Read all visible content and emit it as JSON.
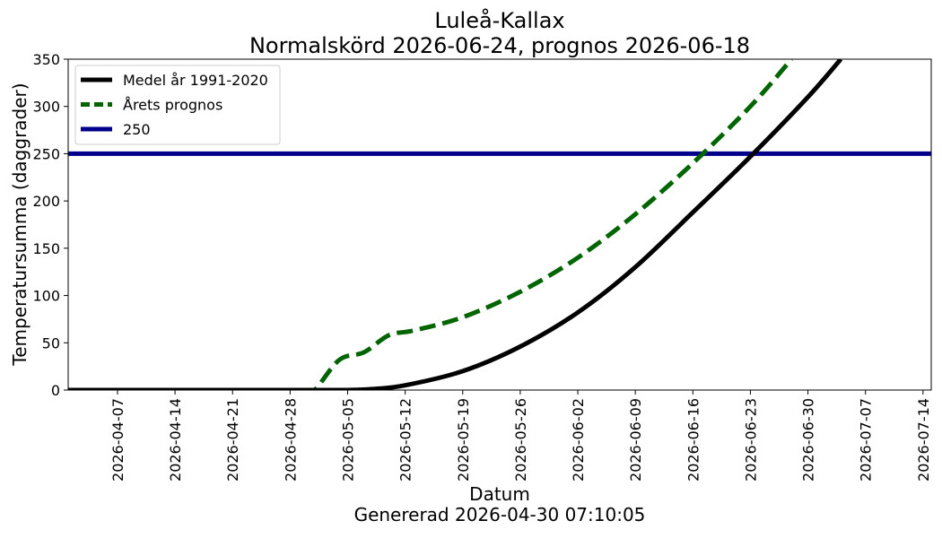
{
  "chart_data": {
    "type": "line",
    "title": "Luleå-Kallax",
    "subtitle": "Normalskörd 2026-06-24, prognos 2026-06-18",
    "xlabel": "Datum",
    "footer": "Genererad 2026-04-30 07:10:05",
    "ylabel": "Temperatursumma (daggrader)",
    "xlim": [
      "2026-04-01",
      "2026-07-15"
    ],
    "ylim": [
      0,
      350
    ],
    "x_ticks": [
      "2026-04-07",
      "2026-04-14",
      "2026-04-21",
      "2026-04-28",
      "2026-05-05",
      "2026-05-12",
      "2026-05-19",
      "2026-05-26",
      "2026-06-02",
      "2026-06-09",
      "2026-06-16",
      "2026-06-23",
      "2026-06-30",
      "2026-07-07",
      "2026-07-14"
    ],
    "y_ticks": [
      0,
      50,
      100,
      150,
      200,
      250,
      300,
      350
    ],
    "grid": false,
    "legend_position": "top-left",
    "series": [
      {
        "name": "Medel år 1991-2020",
        "color": "#000000",
        "style": "solid",
        "points": [
          [
            "2026-04-01",
            0
          ],
          [
            "2026-05-01",
            0
          ],
          [
            "2026-05-05",
            0
          ],
          [
            "2026-05-08",
            1
          ],
          [
            "2026-05-12",
            5
          ],
          [
            "2026-05-19",
            20
          ],
          [
            "2026-05-26",
            46
          ],
          [
            "2026-06-02",
            82
          ],
          [
            "2026-06-09",
            130
          ],
          [
            "2026-06-16",
            188
          ],
          [
            "2026-06-23",
            247
          ],
          [
            "2026-06-30",
            310
          ],
          [
            "2026-07-04",
            350
          ]
        ]
      },
      {
        "name": "Årets prognos",
        "color": "#006400",
        "style": "dashed",
        "points": [
          [
            "2026-04-01",
            0
          ],
          [
            "2026-04-30",
            0
          ],
          [
            "2026-05-01",
            0
          ],
          [
            "2026-05-04",
            32
          ],
          [
            "2026-05-07",
            40
          ],
          [
            "2026-05-10",
            58
          ],
          [
            "2026-05-13",
            63
          ],
          [
            "2026-05-19",
            77
          ],
          [
            "2026-05-26",
            104
          ],
          [
            "2026-06-02",
            140
          ],
          [
            "2026-06-09",
            186
          ],
          [
            "2026-06-16",
            240
          ],
          [
            "2026-06-23",
            300
          ],
          [
            "2026-06-28",
            350
          ]
        ]
      },
      {
        "name": "250",
        "color": "#00008b",
        "style": "solid",
        "points": [
          [
            "2026-04-01",
            250
          ],
          [
            "2026-07-15",
            250
          ]
        ]
      }
    ]
  }
}
